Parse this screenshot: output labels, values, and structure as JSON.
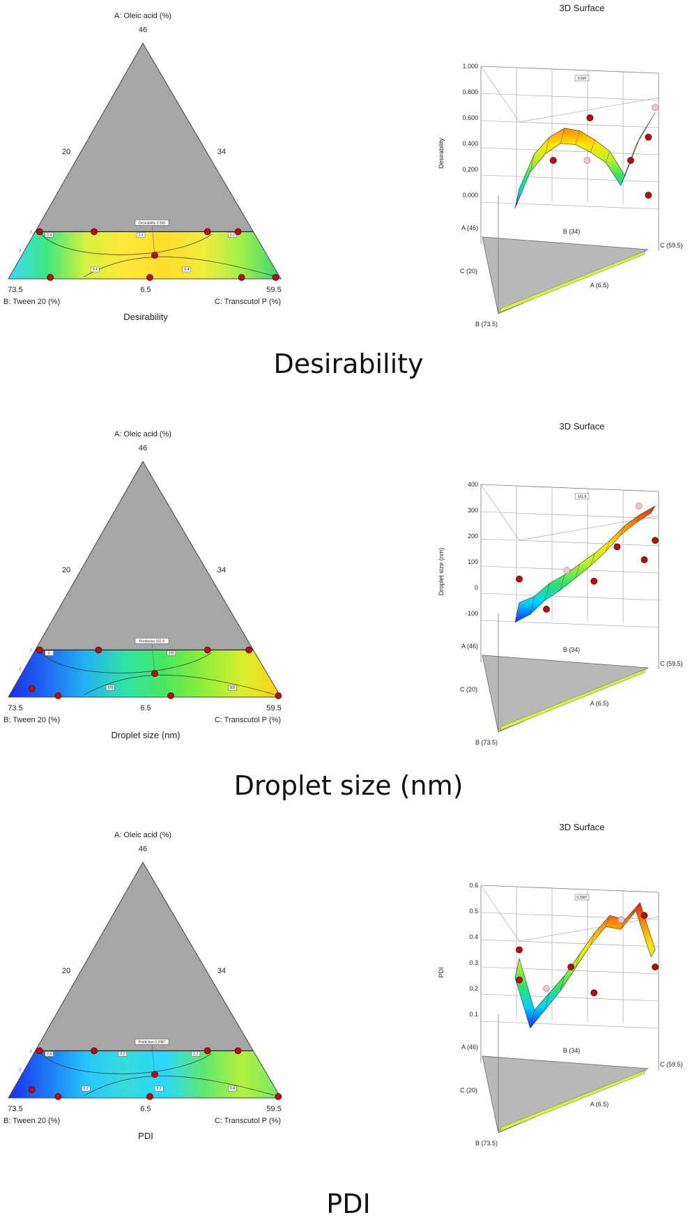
{
  "chart_data": [
    {
      "type": "ternary-contour",
      "title": "Desirability",
      "caption": "Desirability",
      "vertex_top": {
        "label": "A: Oleic acid (%)",
        "value": "46"
      },
      "vertex_left": {
        "label": "B: Tween 20 (%)",
        "value": "73.5"
      },
      "vertex_right": {
        "label": "C: Transcutol P (%)",
        "value": "59.5"
      },
      "edge_ticks": {
        "left": "20",
        "right": "34",
        "bottom": "6.5"
      },
      "prediction_flag": "Desirability 0.500",
      "contour_labels": [
        "0.4",
        "0.4",
        "0.4",
        "0.4",
        "0.2"
      ],
      "colormap": [
        "#1b2cf0",
        "#00d2ff",
        "#2fe36a",
        "#b6f02a",
        "#ffe600",
        "#ff8c00",
        "#e0201e"
      ],
      "fill_stops": [
        "#38d8ff",
        "#3ee87c",
        "#d8f03c",
        "#ffe83a",
        "#ffde2a",
        "#f3ec3a",
        "#9ff04b",
        "#3ad27a"
      ],
      "design_points_edge": [
        0.02,
        0.27,
        0.79,
        0.93
      ],
      "design_points_low": [
        0.12,
        0.5,
        0.85,
        0.98
      ],
      "surface": {
        "title": "3D Surface",
        "zlabel": "Desirability",
        "zticks": [
          "0.000",
          "0.200",
          "0.400",
          "0.600",
          "0.800",
          "1.000"
        ],
        "zlim": [
          0,
          1
        ],
        "flag": "0.500",
        "axis_labels": [
          "A (46)",
          "B (34)",
          "C (59.5)",
          "C (20)",
          "A (6.5)",
          "B (73.5)"
        ],
        "curve": [
          0.05,
          0.32,
          0.45,
          0.52,
          0.5,
          0.43,
          0.34,
          0.15,
          0.45,
          0.64
        ],
        "points": [
          {
            "t": 0.25,
            "z": 0.27
          },
          {
            "t": 0.52,
            "z": 0.6
          },
          {
            "t": 0.5,
            "z": 0.27
          },
          {
            "t": 0.82,
            "z": 0.27
          },
          {
            "t": 0.95,
            "z": 0.45
          },
          {
            "t": 1.0,
            "z": 0.68
          },
          {
            "t": 0.95,
            "z": 0.0
          }
        ]
      }
    },
    {
      "type": "ternary-contour",
      "title": "Droplet size  (nm)",
      "caption": "Droplet size (nm)",
      "vertex_top": {
        "label": "A: Oleic acid (%)",
        "value": "46"
      },
      "vertex_left": {
        "label": "B: Tween 20 (%)",
        "value": "73.5"
      },
      "vertex_right": {
        "label": "C: Transcutol P (%)",
        "value": "59.5"
      },
      "edge_ticks": {
        "left": "20",
        "right": "34",
        "bottom": "6.5"
      },
      "prediction_flag": "Prediction 161.9",
      "contour_labels": [
        "0",
        "100",
        "200",
        "300"
      ],
      "colormap": [
        "#1b2cf0",
        "#00d2ff",
        "#2fe36a",
        "#b6f02a",
        "#ffe600",
        "#ff8c00",
        "#e0201e"
      ],
      "fill_stops": [
        "#1b2cf0",
        "#1f6af2",
        "#22b3f2",
        "#2fe2a6",
        "#47e85e",
        "#8eee3a",
        "#d8ee2c",
        "#ffd21c"
      ],
      "design_points_edge": [
        0.02,
        0.29,
        0.79,
        0.98
      ],
      "design_points_low": [
        0.05,
        0.15,
        0.58,
        0.99
      ],
      "surface": {
        "title": "3D Surface",
        "zlabel": "Droplet size  (nm)",
        "zticks": [
          "-100",
          "0",
          "100",
          "200",
          "300",
          "400"
        ],
        "zlim": [
          -200,
          400
        ],
        "flag": "161.9",
        "axis_labels": [
          "A (46)",
          "B (34)",
          "C (59.5)",
          "C (20)",
          "A (6.5)",
          "B (73.5)"
        ],
        "curve": [
          -150,
          -120,
          -60,
          -20,
          30,
          80,
          140,
          210,
          260,
          300
        ],
        "points": [
          {
            "t": 0.0,
            "z": -40
          },
          {
            "t": 0.2,
            "z": -180
          },
          {
            "t": 0.35,
            "z": 0
          },
          {
            "t": 0.55,
            "z": -50
          },
          {
            "t": 0.72,
            "z": 110
          },
          {
            "t": 0.88,
            "z": 300
          },
          {
            "t": 0.92,
            "z": 50
          },
          {
            "t": 1.0,
            "z": 140
          }
        ]
      }
    },
    {
      "type": "ternary-contour",
      "title": "PDI",
      "caption": "PDI",
      "vertex_top": {
        "label": "A: Oleic acid (%)",
        "value": "46"
      },
      "vertex_left": {
        "label": "B: Tween 20 (%)",
        "value": "73.5"
      },
      "vertex_right": {
        "label": "C: Transcutol P (%)",
        "value": "59.5"
      },
      "edge_ticks": {
        "left": "20",
        "right": "34",
        "bottom": "6.5"
      },
      "prediction_flag": "Prediction 0.2987",
      "contour_labels": [
        "0.4",
        "0.2",
        "0.2",
        "0.2",
        "0.2",
        "0.4"
      ],
      "colormap": [
        "#1b2cf0",
        "#00d2ff",
        "#2fe36a",
        "#b6f02a",
        "#ffe600",
        "#ff8c00",
        "#e0201e"
      ],
      "fill_stops": [
        "#1b2cf0",
        "#1f78f2",
        "#27c5ff",
        "#36dcd8",
        "#2ad7ff",
        "#5ee870",
        "#b3f03c",
        "#6fe96a"
      ],
      "design_points_edge": [
        0.02,
        0.27,
        0.79,
        0.93
      ],
      "design_points_low": [
        0.05,
        0.15,
        0.5,
        0.99
      ],
      "surface": {
        "title": "3D Surface",
        "zlabel": "PDI",
        "zticks": [
          "0.1",
          "0.2",
          "0.3",
          "0.4",
          "0.5",
          "0.6"
        ],
        "zlim": [
          0,
          0.6
        ],
        "flag": "0.2987",
        "axis_labels": [
          "A (46)",
          "B (34)",
          "C (59.5)",
          "C (20)",
          "A (6.5)",
          "B (73.5)"
        ],
        "curve": [
          0.26,
          0.02,
          0.1,
          0.18,
          0.28,
          0.38,
          0.46,
          0.44,
          0.52,
          0.3
        ],
        "points": [
          {
            "t": 0.0,
            "z": 0.3
          },
          {
            "t": 0.0,
            "z": 0.16
          },
          {
            "t": 0.2,
            "z": 0.12
          },
          {
            "t": 0.38,
            "z": 0.22
          },
          {
            "t": 0.55,
            "z": 0.1
          },
          {
            "t": 0.75,
            "z": 0.44
          },
          {
            "t": 0.92,
            "z": 0.46
          },
          {
            "t": 1.0,
            "z": 0.22
          }
        ]
      }
    }
  ]
}
